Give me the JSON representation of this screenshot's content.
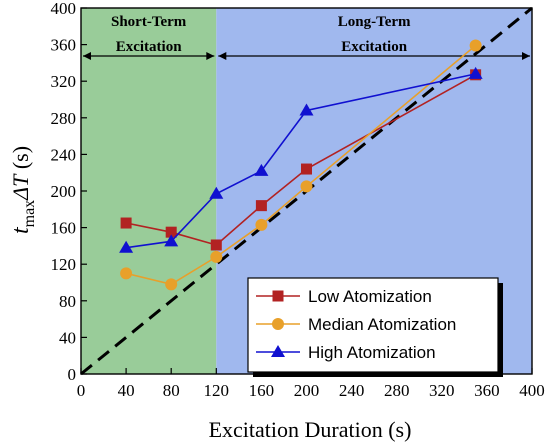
{
  "chart_data": {
    "type": "line",
    "xlabel": "Excitation Duration (s)",
    "ylabel_main": "t",
    "ylabel_sub": "max",
    "ylabel_symbol": "ΔT",
    "ylabel_unit": " (s)",
    "xlim": [
      0,
      400
    ],
    "ylim": [
      0,
      400
    ],
    "xticks": [
      0,
      40,
      80,
      120,
      160,
      200,
      240,
      280,
      320,
      360,
      400
    ],
    "yticks": [
      0,
      40,
      80,
      120,
      160,
      200,
      240,
      280,
      320,
      360,
      400
    ],
    "regions": [
      {
        "x_start": 0,
        "x_end": 120,
        "color": "#99cc99",
        "label_line1": "Short-Term",
        "label_line2": "Excitation"
      },
      {
        "x_start": 120,
        "x_end": 400,
        "color": "#a0b8ee",
        "label_line1": "Long-Term",
        "label_line2": "Excitation"
      }
    ],
    "reference_line": {
      "x": [
        0,
        400
      ],
      "y": [
        0,
        400
      ],
      "style": "dashed",
      "color": "#000000"
    },
    "series": [
      {
        "name": "Low Atomization",
        "color": "#b22222",
        "marker": "square",
        "x": [
          40,
          80,
          120,
          160,
          200,
          350
        ],
        "y": [
          165,
          155,
          141,
          184,
          224,
          327
        ]
      },
      {
        "name": "Median Atomization",
        "color": "#e8a02a",
        "marker": "circle",
        "x": [
          40,
          80,
          120,
          160,
          200,
          350
        ],
        "y": [
          110,
          98,
          128,
          163,
          205,
          359
        ]
      },
      {
        "name": "High Atomization",
        "color": "#1010d0",
        "marker": "triangle",
        "x": [
          40,
          80,
          120,
          160,
          200,
          350
        ],
        "y": [
          138,
          145,
          197,
          222,
          288,
          328
        ]
      }
    ],
    "legend_position": "bottom-right",
    "grid": false
  }
}
